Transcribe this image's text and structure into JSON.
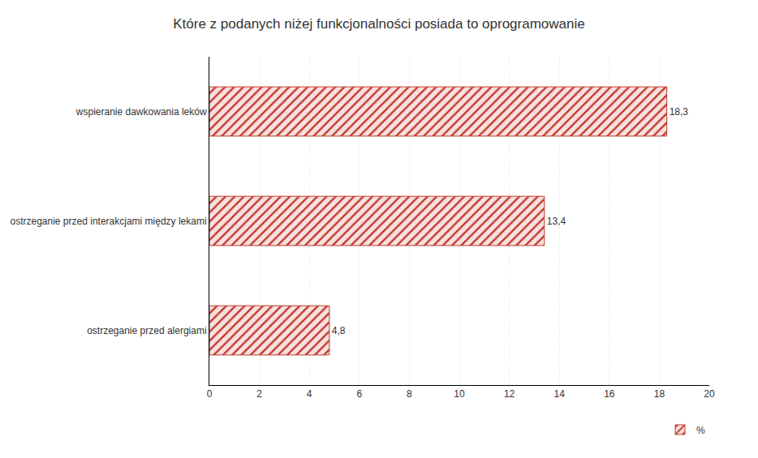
{
  "chart_data": {
    "type": "bar",
    "orientation": "horizontal",
    "title": "Które z podanych niżej funkcjonalności posiada to oprogramowanie",
    "categories": [
      "ostrzeganie przed alergiami",
      "ostrzeganie przed interakcjami między lekami",
      "wspieranie dawkowania leków"
    ],
    "series": [
      {
        "name": "%",
        "color": "#c0392b",
        "values": [
          4.8,
          13.4,
          18.3
        ],
        "value_labels": [
          "4,8",
          "13,4",
          "18,3"
        ]
      }
    ],
    "xlim": [
      0,
      20
    ],
    "xticks": [
      0,
      2,
      4,
      6,
      8,
      10,
      12,
      14,
      16,
      18,
      20
    ],
    "grid": true,
    "legend": "lower right",
    "data_labels": true
  }
}
